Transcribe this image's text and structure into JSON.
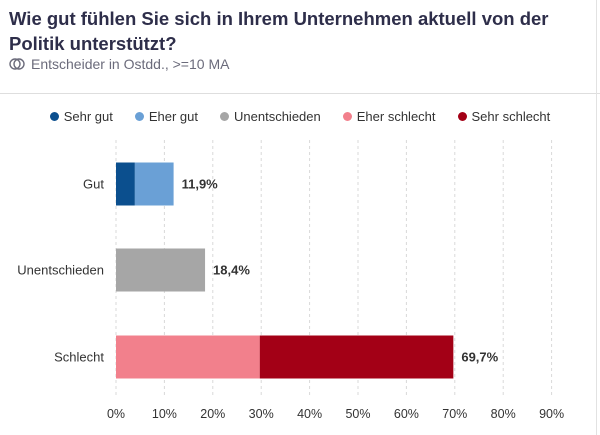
{
  "header": {
    "title": "Wie gut fühlen Sie sich in Ihrem Unternehmen aktuell von der Politik unterstützt?",
    "subtitle": "Entscheider in Ostdd., >=10 MA",
    "subtitle_icon": "people-icon"
  },
  "colors": {
    "sehr_gut": "#0b4f8e",
    "eher_gut": "#6aa0d6",
    "unentschieden": "#a6a6a6",
    "eher_schlecht": "#f2808c",
    "sehr_schlecht": "#a30016"
  },
  "chart_data": {
    "type": "bar",
    "orientation": "horizontal",
    "stacked": true,
    "categories": [
      "Gut",
      "Unentschieden",
      "Schlecht"
    ],
    "series": [
      {
        "name": "Sehr gut",
        "color": "#0b4f8e",
        "values": [
          3.9,
          0,
          0
        ]
      },
      {
        "name": "Eher gut",
        "color": "#6aa0d6",
        "values": [
          8.0,
          0,
          0
        ]
      },
      {
        "name": "Unentschieden",
        "color": "#a6a6a6",
        "values": [
          0,
          18.4,
          0
        ]
      },
      {
        "name": "Eher schlecht",
        "color": "#f2808c",
        "values": [
          0,
          0,
          29.7
        ]
      },
      {
        "name": "Sehr schlecht",
        "color": "#a30016",
        "values": [
          0,
          0,
          40.0
        ]
      }
    ],
    "totals_labels": [
      "11,9%",
      "18,4%",
      "69,7%"
    ],
    "xlim": [
      0,
      90
    ],
    "xticks": [
      0,
      10,
      20,
      30,
      40,
      50,
      60,
      70,
      80,
      90
    ],
    "xtick_labels": [
      "0%",
      "10%",
      "20%",
      "30%",
      "40%",
      "50%",
      "60%",
      "70%",
      "80%",
      "90%"
    ],
    "grid": true,
    "legend_position": "top"
  }
}
